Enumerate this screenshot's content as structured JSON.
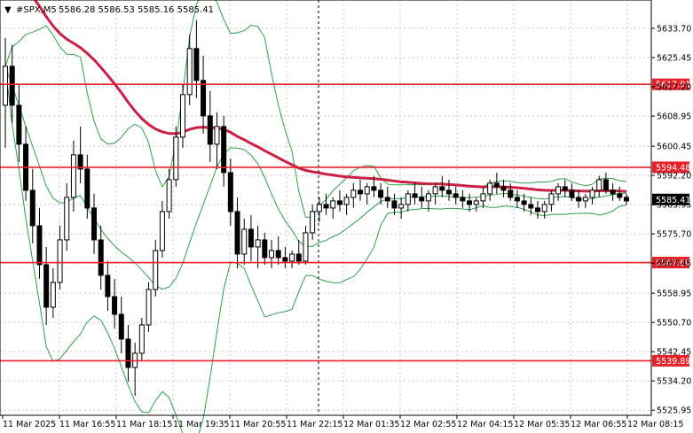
{
  "header": {
    "symbol": "#SPX,M5",
    "ohlc": "5586.28 5586.53 5585.16 5585.41"
  },
  "chart_data": {
    "type": "candlestick",
    "title": "#SPX,M5",
    "ylim": [
      5524.5,
      5641.7
    ],
    "y_ticks": [
      "5633.70",
      "5625.45",
      "5617.20",
      "5608.95",
      "5600.45",
      "5592.20",
      "5583.95",
      "5575.70",
      "5567.45",
      "5558.95",
      "5550.70",
      "5542.45",
      "5534.20",
      "5525.95"
    ],
    "x_ticks": [
      "11 Mar 2025",
      "11 Mar 16:55",
      "11 Mar 18:15",
      "11 Mar 19:35",
      "11 Mar 20:55",
      "11 Mar 22:15",
      "12 Mar 01:35",
      "12 Mar 02:55",
      "12 Mar 04:15",
      "12 Mar 05:35",
      "12 Mar 06:55",
      "12 Mar 08:15"
    ],
    "current_price": "5585.41",
    "levels": [
      {
        "label": "5617.91",
        "value": 5617.91,
        "color": "#e8202a"
      },
      {
        "label": "5594.48",
        "value": 5594.48,
        "color": "#e8202a"
      },
      {
        "label": "5567.60",
        "value": 5567.6,
        "color": "#e8202a"
      },
      {
        "label": "5539.89",
        "value": 5539.89,
        "color": "#e8202a"
      }
    ],
    "session_divider_index": 70,
    "grid": true,
    "colors": {
      "up": "#ffffff",
      "down": "#000000",
      "ma": "#cc1f44",
      "bands": "#2e9e4a",
      "levels": "#e8202a",
      "grid": "#c8c8c8"
    },
    "candles": [
      [
        5612,
        5631,
        5600,
        5623
      ],
      [
        5623,
        5629,
        5607,
        5612
      ],
      [
        5612,
        5618,
        5596,
        5601
      ],
      [
        5601,
        5606,
        5585,
        5588
      ],
      [
        5588,
        5594,
        5573,
        5578
      ],
      [
        5578,
        5583,
        5563,
        5567
      ],
      [
        5567,
        5572,
        5550,
        5555
      ],
      [
        5555,
        5566,
        5552,
        5562
      ],
      [
        5562,
        5578,
        5560,
        5574
      ],
      [
        5574,
        5590,
        5571,
        5586
      ],
      [
        5586,
        5602,
        5582,
        5598
      ],
      [
        5598,
        5606,
        5590,
        5594
      ],
      [
        5594,
        5598,
        5580,
        5583
      ],
      [
        5583,
        5587,
        5570,
        5574
      ],
      [
        5574,
        5578,
        5560,
        5564
      ],
      [
        5564,
        5568,
        5554,
        5558
      ],
      [
        5558,
        5563,
        5549,
        5553
      ],
      [
        5553,
        5558,
        5542,
        5546
      ],
      [
        5546,
        5550,
        5534,
        5538
      ],
      [
        5538,
        5545,
        5530,
        5542
      ],
      [
        5542,
        5552,
        5540,
        5550
      ],
      [
        5550,
        5562,
        5548,
        5560
      ],
      [
        5560,
        5574,
        5558,
        5571
      ],
      [
        5571,
        5585,
        5569,
        5582
      ],
      [
        5582,
        5594,
        5580,
        5591
      ],
      [
        5591,
        5606,
        5589,
        5603
      ],
      [
        5603,
        5618,
        5600,
        5615
      ],
      [
        5615,
        5632,
        5612,
        5628
      ],
      [
        5628,
        5636,
        5614,
        5619
      ],
      [
        5619,
        5626,
        5604,
        5609
      ],
      [
        5609,
        5616,
        5596,
        5601
      ],
      [
        5601,
        5610,
        5594,
        5606
      ],
      [
        5606,
        5609,
        5589,
        5593
      ],
      [
        5593,
        5597,
        5578,
        5582
      ],
      [
        5582,
        5586,
        5566,
        5570
      ],
      [
        5570,
        5580,
        5567,
        5577
      ],
      [
        5577,
        5581,
        5568,
        5572
      ],
      [
        5572,
        5578,
        5566,
        5574
      ],
      [
        5574,
        5576,
        5567,
        5569
      ],
      [
        5569,
        5574,
        5566,
        5571
      ],
      [
        5571,
        5575,
        5567,
        5569
      ],
      [
        5569,
        5572,
        5566,
        5568
      ],
      [
        5568,
        5571,
        5566,
        5570
      ],
      [
        5570,
        5574,
        5567,
        5568
      ],
      [
        5568,
        5578,
        5567,
        5576
      ],
      [
        5576,
        5584,
        5574,
        5582
      ],
      [
        5582,
        5586,
        5579,
        5584
      ],
      [
        5584,
        5587,
        5581,
        5583
      ],
      [
        5583,
        5586,
        5580,
        5585
      ],
      [
        5585,
        5588,
        5582,
        5584
      ],
      [
        5584,
        5587,
        5581,
        5586
      ],
      [
        5586,
        5590,
        5583,
        5588
      ],
      [
        5588,
        5591,
        5585,
        5587
      ],
      [
        5587,
        5590,
        5584,
        5589
      ],
      [
        5589,
        5592,
        5586,
        5588
      ],
      [
        5588,
        5590,
        5584,
        5586
      ],
      [
        5586,
        5589,
        5583,
        5585
      ],
      [
        5585,
        5587,
        5581,
        5583
      ],
      [
        5583,
        5586,
        5580,
        5584
      ],
      [
        5584,
        5588,
        5582,
        5587
      ],
      [
        5587,
        5590,
        5584,
        5586
      ],
      [
        5586,
        5589,
        5583,
        5585
      ],
      [
        5585,
        5588,
        5582,
        5587
      ],
      [
        5587,
        5590,
        5584,
        5589
      ],
      [
        5589,
        5592,
        5586,
        5588
      ],
      [
        5588,
        5591,
        5585,
        5587
      ],
      [
        5587,
        5589,
        5584,
        5586
      ],
      [
        5586,
        5588,
        5583,
        5585
      ],
      [
        5585,
        5587,
        5582,
        5584
      ],
      [
        5584,
        5586,
        5582,
        5585
      ],
      [
        5585,
        5589,
        5583,
        5587
      ],
      [
        5587,
        5591,
        5585,
        5590
      ],
      [
        5590,
        5593,
        5587,
        5589
      ],
      [
        5589,
        5591,
        5586,
        5588
      ],
      [
        5588,
        5590,
        5585,
        5586
      ],
      [
        5586,
        5588,
        5583,
        5585
      ],
      [
        5585,
        5587,
        5582,
        5584
      ],
      [
        5584,
        5586,
        5581,
        5583
      ],
      [
        5583,
        5585,
        5580,
        5582
      ],
      [
        5582,
        5585,
        5580,
        5584
      ],
      [
        5584,
        5588,
        5582,
        5587
      ],
      [
        5587,
        5590,
        5585,
        5589
      ],
      [
        5589,
        5591,
        5586,
        5588
      ],
      [
        5588,
        5590,
        5585,
        5586
      ],
      [
        5586,
        5588,
        5583,
        5585
      ],
      [
        5585,
        5587,
        5583,
        5586
      ],
      [
        5586,
        5589,
        5584,
        5588
      ],
      [
        5588,
        5592,
        5586,
        5591
      ],
      [
        5591,
        5593,
        5587,
        5588
      ],
      [
        5588,
        5590,
        5585,
        5587
      ],
      [
        5587,
        5589,
        5585,
        5586
      ],
      [
        5586,
        5587,
        5584,
        5585
      ]
    ]
  }
}
